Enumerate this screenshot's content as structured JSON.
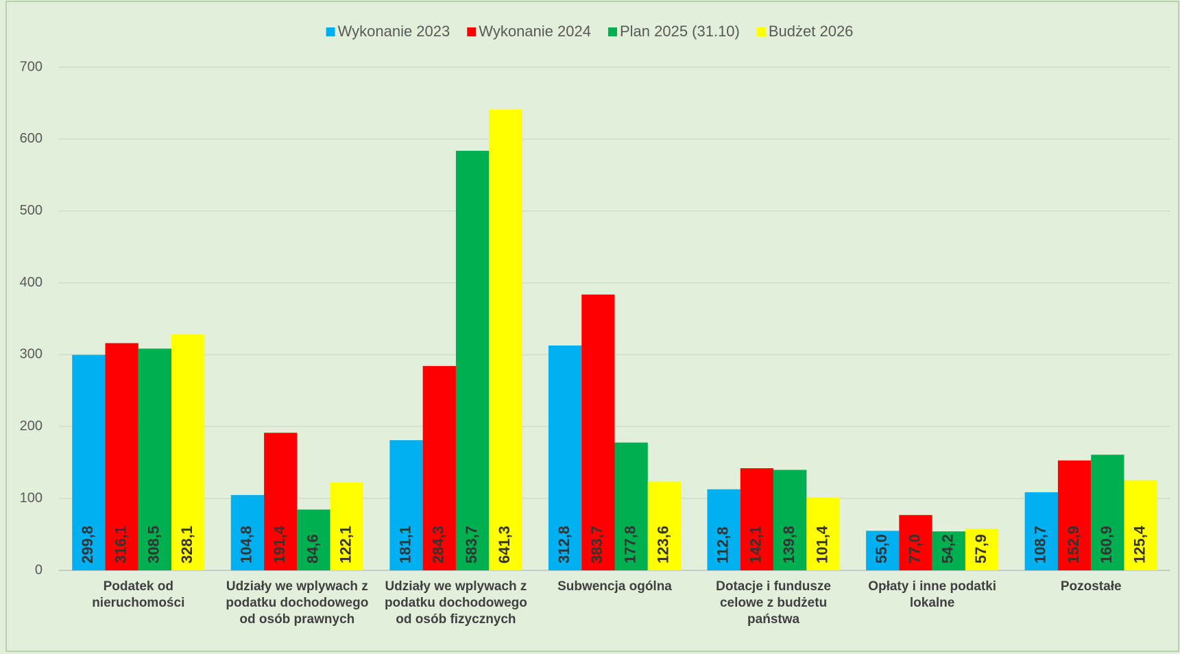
{
  "chart_data": {
    "type": "bar",
    "categories": [
      "Podatek od nieruchomości",
      "Udziały we wplywach z podatku dochodowego od osób prawnych",
      "Udziały we wplywach z podatku dochodowego od osób fizycznych",
      "Subwencja ogólna",
      "Dotacje i fundusze celowe z budżetu państwa",
      "Opłaty i inne podatki lokalne",
      "Pozostałe"
    ],
    "series": [
      {
        "name": "Wykonanie 2023",
        "color": "#00b0f0",
        "values": [
          299.8,
          104.8,
          181.1,
          312.8,
          112.8,
          55.0,
          108.7
        ],
        "value_labels": [
          "299,8",
          "104,8",
          "181,1",
          "312,8",
          "112,8",
          "55,0",
          "108,7"
        ]
      },
      {
        "name": "Wykonanie 2024",
        "color": "#ff0000",
        "values": [
          316.1,
          191.4,
          284.3,
          383.7,
          142.1,
          77.0,
          152.9
        ],
        "value_labels": [
          "316,1",
          "191,4",
          "284,3",
          "383,7",
          "142,1",
          "77,0",
          "152,9"
        ]
      },
      {
        "name": "Plan 2025 (31.10)",
        "color": "#00b050",
        "values": [
          308.5,
          84.6,
          583.7,
          177.8,
          139.8,
          54.2,
          160.9
        ],
        "value_labels": [
          "308,5",
          "84,6",
          "583,7",
          "177,8",
          "139,8",
          "54,2",
          "160,9"
        ]
      },
      {
        "name": "Budżet 2026",
        "color": "#ffff00",
        "values": [
          328.1,
          122.1,
          641.3,
          123.6,
          101.4,
          57.9,
          125.4
        ],
        "value_labels": [
          "328,1",
          "122,1",
          "641,3",
          "123,6",
          "101,4",
          "57,9",
          "125,4"
        ]
      }
    ],
    "ylim": [
      0,
      700
    ],
    "yticks": [
      0,
      100,
      200,
      300,
      400,
      500,
      600,
      700
    ],
    "grid": true,
    "legend": "top"
  }
}
